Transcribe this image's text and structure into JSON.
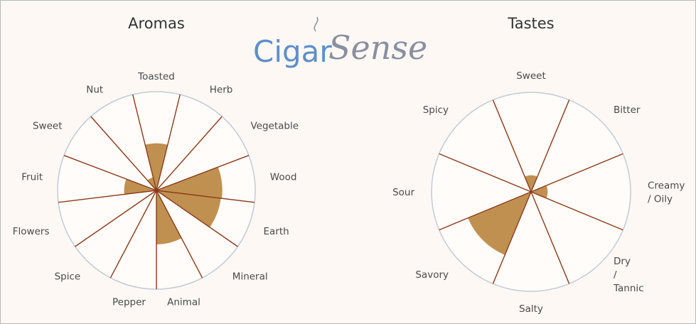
{
  "logo": {
    "part1": "Cigar",
    "part2": "Sense"
  },
  "colors": {
    "wedge": "#c09050",
    "spoke": "#8b3a1a",
    "circle": "#c3cad8",
    "background": "#fdf8f4"
  },
  "chart_data": [
    {
      "type": "radial-bar",
      "title": "Aromas",
      "categories": [
        "Toasted",
        "Herb",
        "Vegetable",
        "Wood",
        "Earth",
        "Mineral",
        "Animal",
        "Pepper",
        "Spice",
        "Flowers",
        "Fruit",
        "Sweet",
        "Nut"
      ],
      "values": [
        0.48,
        0,
        0,
        0.67,
        0.66,
        0,
        0.55,
        0,
        0,
        0,
        0.33,
        0,
        0.14
      ],
      "range": [
        0,
        1
      ]
    },
    {
      "type": "radial-bar",
      "title": "Tastes",
      "categories": [
        "Sweet",
        "Bitter",
        "Creamy / Oily",
        "Dry / Tannic",
        "Salty",
        "Savory",
        "Sour",
        "Spicy"
      ],
      "label_lines": [
        [
          "Sweet"
        ],
        [
          "Bitter"
        ],
        [
          "Creamy",
          "/ Oily"
        ],
        [
          "Dry",
          "/",
          "Tannic"
        ],
        [
          "Salty"
        ],
        [
          "Savory"
        ],
        [
          "Sour"
        ],
        [
          "Spicy"
        ]
      ],
      "values": [
        0.17,
        0,
        0.17,
        0,
        0,
        0.69,
        0,
        0
      ],
      "range": [
        0,
        1
      ]
    }
  ]
}
